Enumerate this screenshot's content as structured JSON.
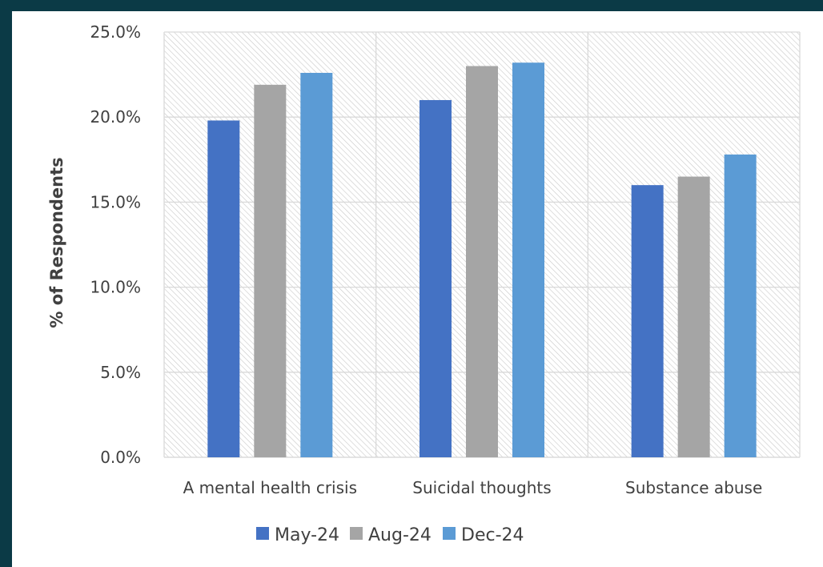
{
  "chart_data": {
    "type": "bar",
    "categories": [
      "A mental health crisis",
      "Suicidal thoughts",
      "Substance abuse"
    ],
    "series": [
      {
        "name": "May-24",
        "values": [
          19.8,
          21.0,
          16.0
        ],
        "color": "#4472c4"
      },
      {
        "name": "Aug-24",
        "values": [
          21.9,
          23.0,
          16.5
        ],
        "color": "#a5a5a5"
      },
      {
        "name": "Dec-24",
        "values": [
          22.6,
          23.2,
          17.8
        ],
        "color": "#5b9bd5"
      }
    ],
    "title": "",
    "xlabel": "",
    "ylabel": "% of Respondents",
    "ylim": [
      0,
      25
    ],
    "yticks": [
      "0.0%",
      "5.0%",
      "10.0%",
      "15.0%",
      "20.0%",
      "25.0%"
    ],
    "grid": true,
    "legend_position": "bottom"
  }
}
